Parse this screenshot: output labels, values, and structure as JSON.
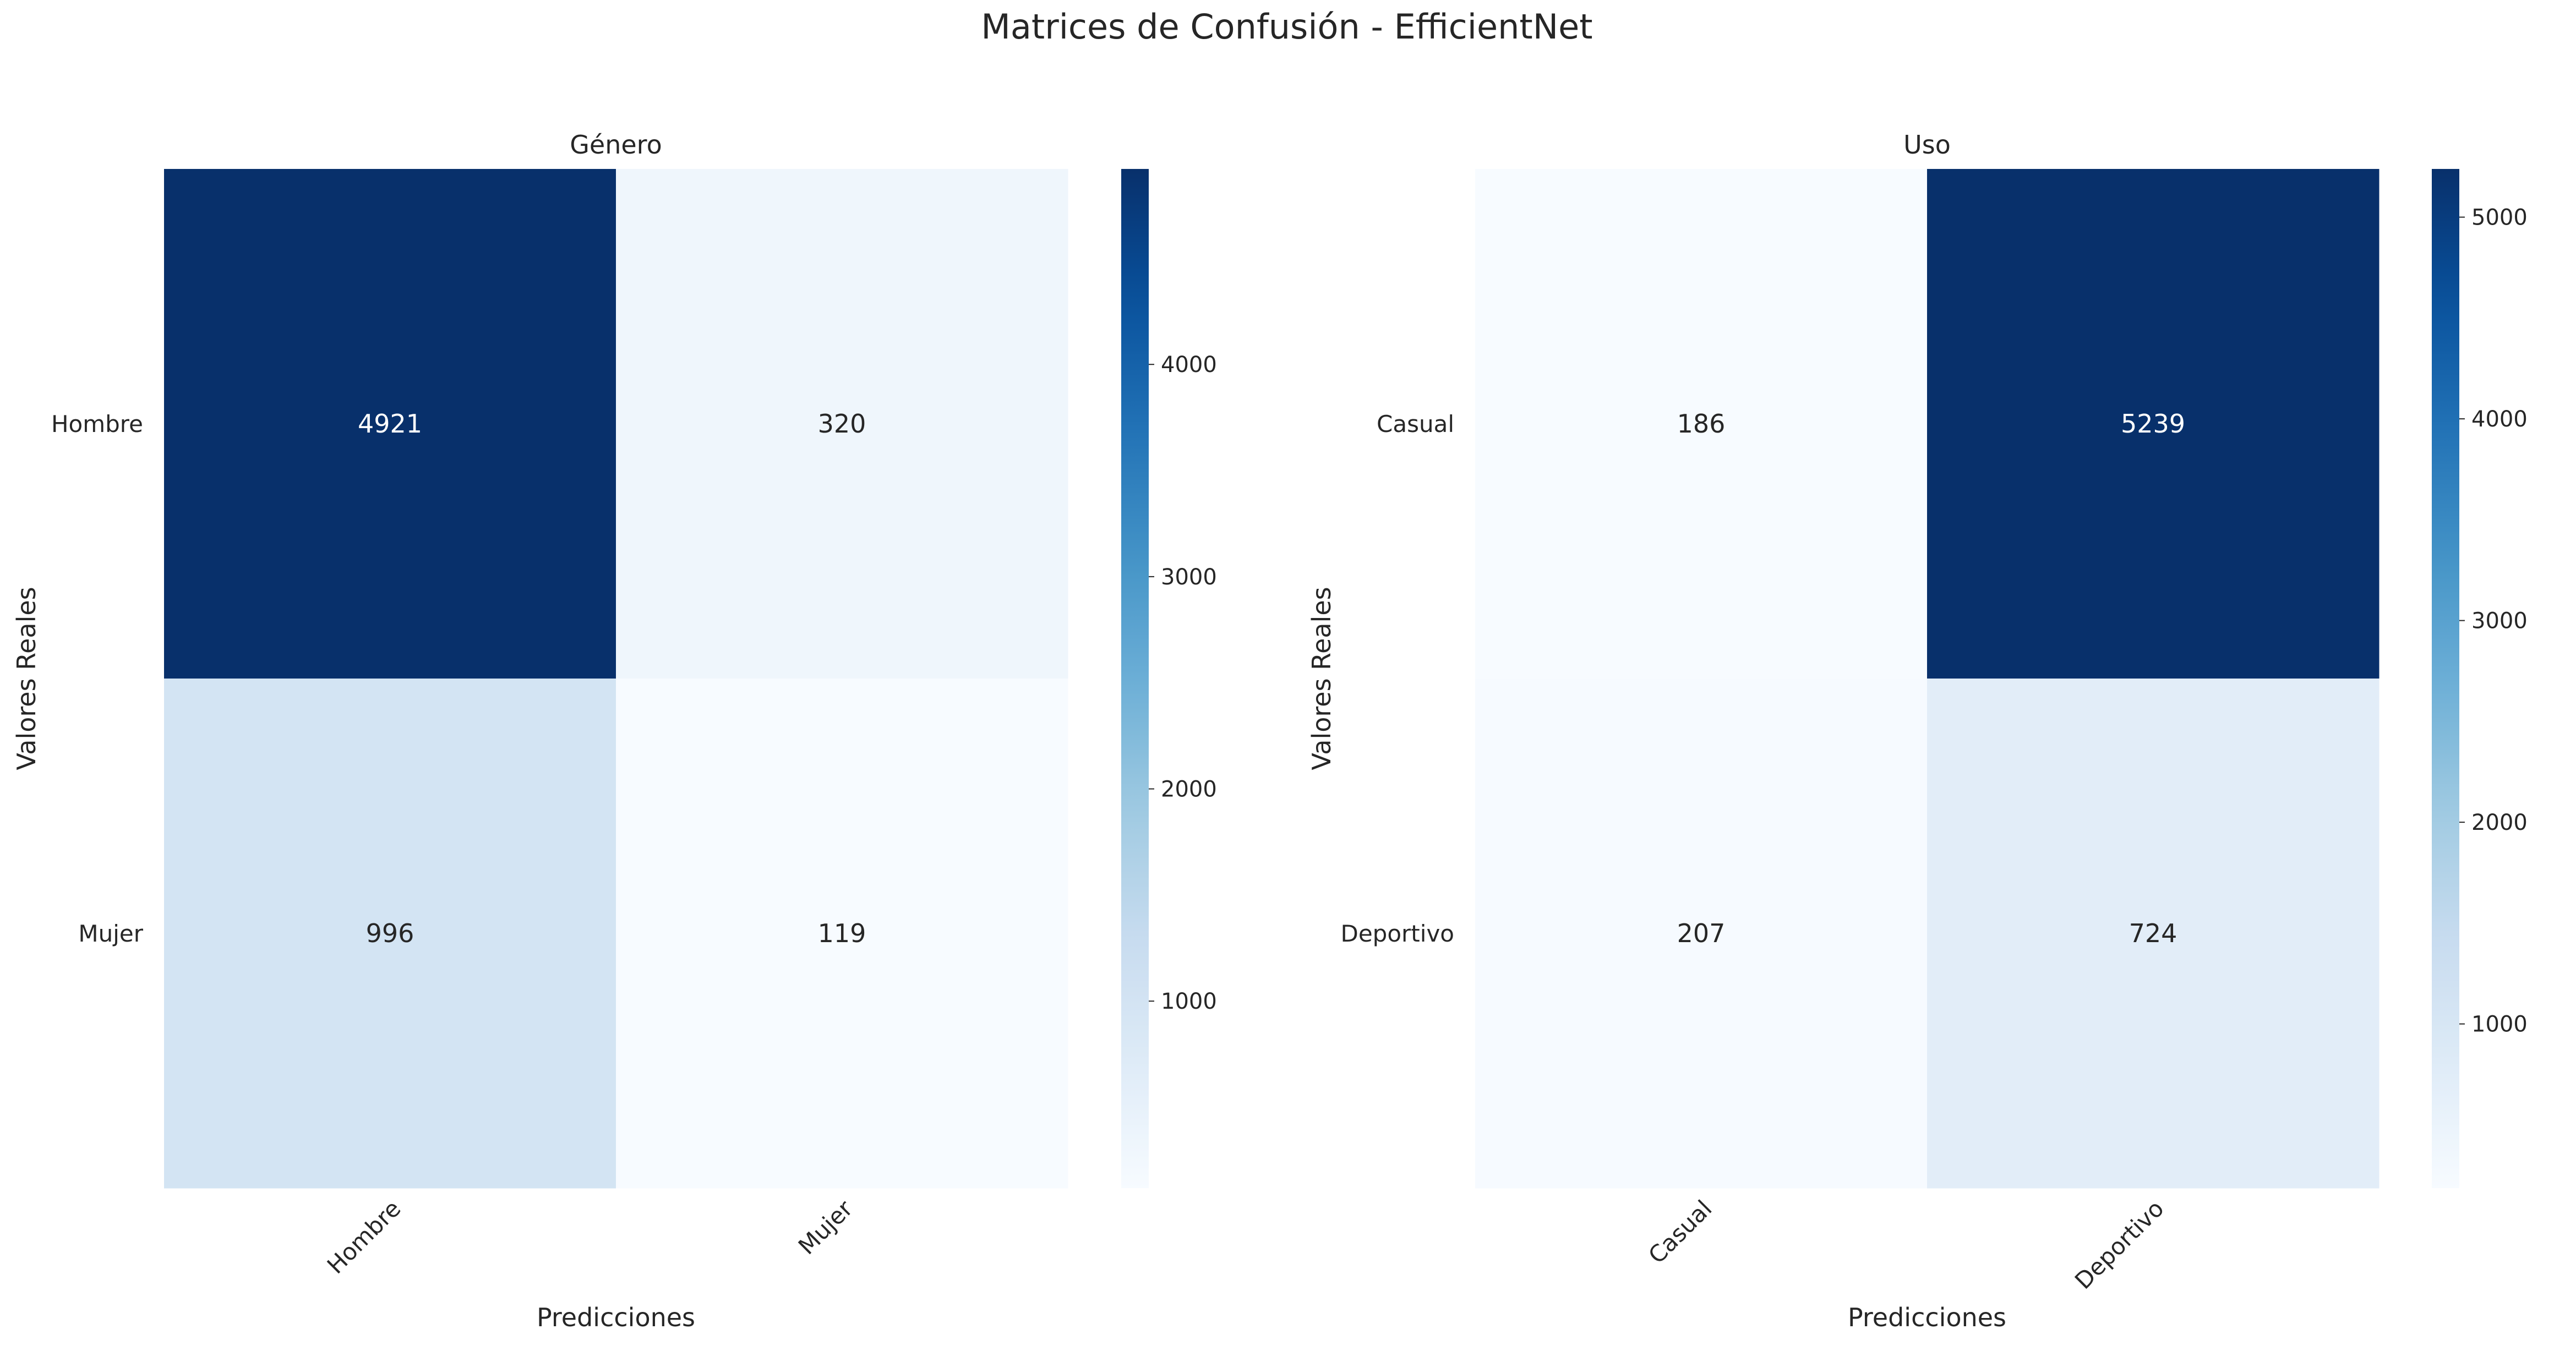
{
  "figure": {
    "suptitle": "Matrices de Confusión - EfficientNet"
  },
  "colormap": {
    "name": "Blues",
    "stops": [
      "#f7fbff",
      "#deebf7",
      "#c6dbef",
      "#9ecae1",
      "#6baed6",
      "#4292c6",
      "#2171b5",
      "#08519c",
      "#08306b"
    ]
  },
  "chart_data": [
    {
      "type": "heatmap",
      "title": "Género",
      "xlabel": "Predicciones",
      "ylabel": "Valores Reales",
      "x_categories": [
        "Hombre",
        "Mujer"
      ],
      "y_categories": [
        "Hombre",
        "Mujer"
      ],
      "values": [
        [
          4921,
          320
        ],
        [
          996,
          119
        ]
      ],
      "color_range": [
        119,
        4921
      ],
      "colorbar_ticks": [
        1000,
        2000,
        3000,
        4000
      ]
    },
    {
      "type": "heatmap",
      "title": "Uso",
      "xlabel": "Predicciones",
      "ylabel": "Valores Reales",
      "x_categories": [
        "Casual",
        "Deportivo"
      ],
      "y_categories": [
        "Casual",
        "Deportivo"
      ],
      "values": [
        [
          186,
          5239
        ],
        [
          207,
          724
        ]
      ],
      "color_range": [
        186,
        5239
      ],
      "colorbar_ticks": [
        1000,
        2000,
        3000,
        4000,
        5000
      ]
    }
  ]
}
